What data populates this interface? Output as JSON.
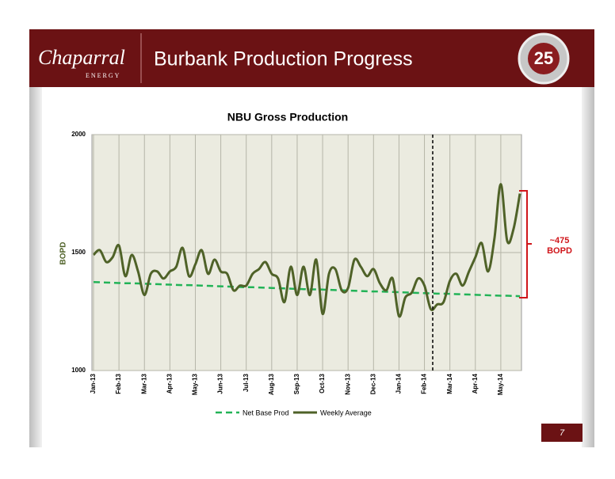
{
  "header": {
    "logo": "Chaparral",
    "logo_sub": "ENERGY",
    "title": "Burbank Production Progress",
    "badge": "25"
  },
  "page_number": "7",
  "chart_data": {
    "type": "line",
    "title": "NBU Gross Production",
    "ylabel": "BOPD",
    "categories": [
      "Jan-13",
      null,
      null,
      null,
      "Feb-13",
      null,
      null,
      null,
      "Mar-13",
      null,
      null,
      null,
      "Apr-13",
      null,
      null,
      null,
      "May-13",
      null,
      null,
      null,
      "Jun-13",
      null,
      null,
      null,
      "Jul-13",
      null,
      null,
      null,
      "Aug-13",
      null,
      null,
      null,
      "Sep-13",
      null,
      null,
      null,
      "Oct-13",
      null,
      null,
      null,
      "Nov-13",
      null,
      null,
      null,
      "Dec-13",
      null,
      null,
      null,
      "Jan-14",
      null,
      null,
      null,
      "Feb-14",
      null,
      null,
      null,
      "Mar-14",
      null,
      null,
      null,
      "Apr-14",
      null,
      null,
      null,
      "May-14",
      null,
      null,
      null
    ],
    "series": [
      {
        "name": "Net Base Prod",
        "color": "#22b357",
        "dashed": true,
        "values": [
          1375,
          1374,
          1373,
          1372,
          1371,
          1370,
          1370,
          1369,
          1368,
          1367,
          1366,
          1365,
          1364,
          1363,
          1362,
          1362,
          1361,
          1360,
          1359,
          1358,
          1357,
          1356,
          1355,
          1354,
          1353,
          1353,
          1352,
          1351,
          1350,
          1349,
          1348,
          1347,
          1346,
          1345,
          1344,
          1344,
          1343,
          1342,
          1341,
          1340,
          1339,
          1338,
          1337,
          1336,
          1335,
          1335,
          1334,
          1333,
          1332,
          1331,
          1330,
          1329,
          1328,
          1327,
          1326,
          1326,
          1325,
          1324,
          1323,
          1322,
          1321,
          1320,
          1319,
          1318,
          1317,
          1317,
          1316,
          1315
        ]
      },
      {
        "name": "Weekly Average",
        "color": "#4f6228",
        "dashed": false,
        "values": [
          1490,
          1510,
          1460,
          1480,
          1530,
          1400,
          1490,
          1420,
          1320,
          1410,
          1420,
          1390,
          1420,
          1440,
          1520,
          1400,
          1450,
          1510,
          1410,
          1470,
          1420,
          1410,
          1340,
          1360,
          1360,
          1410,
          1430,
          1460,
          1410,
          1390,
          1290,
          1440,
          1320,
          1440,
          1320,
          1470,
          1240,
          1410,
          1430,
          1340,
          1350,
          1470,
          1440,
          1400,
          1430,
          1370,
          1340,
          1390,
          1230,
          1310,
          1330,
          1390,
          1360,
          1260,
          1280,
          1290,
          1380,
          1410,
          1360,
          1420,
          1480,
          1540,
          1420,
          1560,
          1790,
          1550,
          1600,
          1750
        ]
      }
    ],
    "ylim": [
      1000,
      2000
    ],
    "yticks": [
      1000,
      1500,
      2000
    ],
    "grid": true,
    "annotation": [
      "~475",
      "BOPD"
    ],
    "legend": "bottom"
  }
}
